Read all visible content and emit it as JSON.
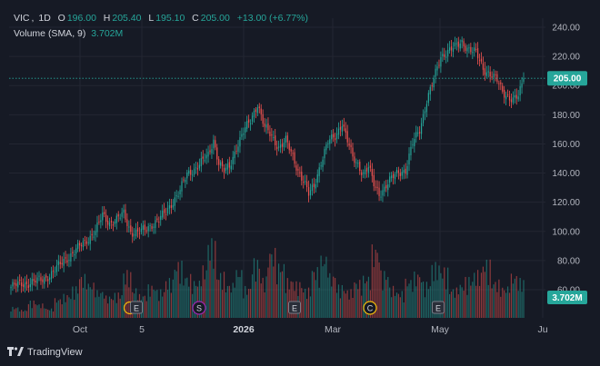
{
  "legend": {
    "symbol": "VIC",
    "interval": "1D",
    "o_label": "O",
    "o_value": "196.00",
    "h_label": "H",
    "h_value": "205.40",
    "l_label": "L",
    "l_value": "195.10",
    "c_label": "C",
    "c_value": "205.00",
    "change": "+13.00 (+6.77%)",
    "volume_label": "Volume (SMA, 9)",
    "volume_value": "3.702M"
  },
  "price_axis": {
    "ticks": [
      "240.00",
      "220.00",
      "200.00",
      "180.00",
      "160.00",
      "140.00",
      "120.00",
      "100.00",
      "80.00",
      "60.00"
    ],
    "current_price_label": "205.00",
    "volume_badge": "3.702M"
  },
  "time_axis": {
    "labels": [
      "Oct",
      "5",
      "2026",
      "Mar",
      "May",
      "Ju"
    ]
  },
  "event_markers": [
    "E",
    "E",
    "S",
    "E",
    "C",
    "E"
  ],
  "branding": {
    "name": "TradingView"
  },
  "colors": {
    "up": "#26a69a",
    "down": "#ef5350",
    "background": "#161a25",
    "grid": "#232632",
    "text": "#b2b5be"
  },
  "chart_data": {
    "type": "candlestick",
    "symbol": "VIC",
    "interval": "1D",
    "ylim": [
      50,
      245
    ],
    "price_ticks": [
      60,
      80,
      100,
      120,
      140,
      160,
      180,
      200,
      220,
      240
    ],
    "last_close": 205.0,
    "close_path": [
      [
        0,
        62
      ],
      [
        6,
        64
      ],
      [
        12,
        65
      ],
      [
        18,
        67
      ],
      [
        24,
        72
      ],
      [
        30,
        80
      ],
      [
        36,
        86
      ],
      [
        42,
        93
      ],
      [
        48,
        100
      ],
      [
        52,
        111
      ],
      [
        56,
        106
      ],
      [
        60,
        108
      ],
      [
        64,
        112
      ],
      [
        68,
        100
      ],
      [
        72,
        99
      ],
      [
        76,
        101
      ],
      [
        80,
        105
      ],
      [
        84,
        108
      ],
      [
        88,
        113
      ],
      [
        92,
        121
      ],
      [
        96,
        128
      ],
      [
        100,
        139
      ],
      [
        104,
        143
      ],
      [
        108,
        147
      ],
      [
        112,
        152
      ],
      [
        115,
        163
      ],
      [
        118,
        147
      ],
      [
        121,
        141
      ],
      [
        124,
        144
      ],
      [
        128,
        158
      ],
      [
        132,
        168
      ],
      [
        136,
        176
      ],
      [
        140,
        188
      ],
      [
        144,
        171
      ],
      [
        148,
        165
      ],
      [
        152,
        158
      ],
      [
        156,
        162
      ],
      [
        160,
        151
      ],
      [
        163,
        142
      ],
      [
        166,
        135
      ],
      [
        169,
        125
      ],
      [
        172,
        131
      ],
      [
        176,
        148
      ],
      [
        180,
        161
      ],
      [
        184,
        165
      ],
      [
        188,
        175
      ],
      [
        191,
        162
      ],
      [
        194,
        150
      ],
      [
        197,
        146
      ],
      [
        200,
        140
      ],
      [
        203,
        144
      ],
      [
        206,
        132
      ],
      [
        209,
        126
      ],
      [
        212,
        130
      ],
      [
        216,
        136
      ],
      [
        220,
        141
      ],
      [
        224,
        142
      ],
      [
        228,
        160
      ],
      [
        232,
        170
      ],
      [
        236,
        190
      ],
      [
        240,
        204
      ],
      [
        244,
        220
      ],
      [
        248,
        224
      ],
      [
        252,
        226
      ],
      [
        256,
        230
      ],
      [
        260,
        225
      ],
      [
        264,
        222
      ],
      [
        268,
        212
      ],
      [
        272,
        208
      ],
      [
        276,
        203
      ],
      [
        279,
        196
      ],
      [
        282,
        193
      ],
      [
        285,
        190
      ],
      [
        288,
        192
      ],
      [
        291,
        205
      ]
    ],
    "volume_relative": [
      0.14,
      0.1,
      0.22,
      0.18,
      0.12,
      0.25,
      0.3,
      0.4,
      0.55,
      0.45,
      0.35,
      0.28,
      0.32,
      0.6,
      0.38,
      0.3,
      0.42,
      0.36,
      0.5,
      0.72,
      0.55,
      0.48,
      0.66,
      1.0,
      0.58,
      0.44,
      0.62,
      0.4,
      0.75,
      0.52,
      0.88,
      0.7,
      0.5,
      0.46,
      0.38,
      0.64,
      0.8,
      0.56,
      0.42,
      0.36,
      0.48,
      0.54,
      0.92,
      0.6,
      0.4,
      0.34,
      0.5,
      0.58,
      0.46,
      0.7,
      0.64,
      0.38,
      0.44,
      0.52,
      0.6,
      0.74,
      0.48,
      0.4,
      0.56,
      0.5
    ]
  }
}
